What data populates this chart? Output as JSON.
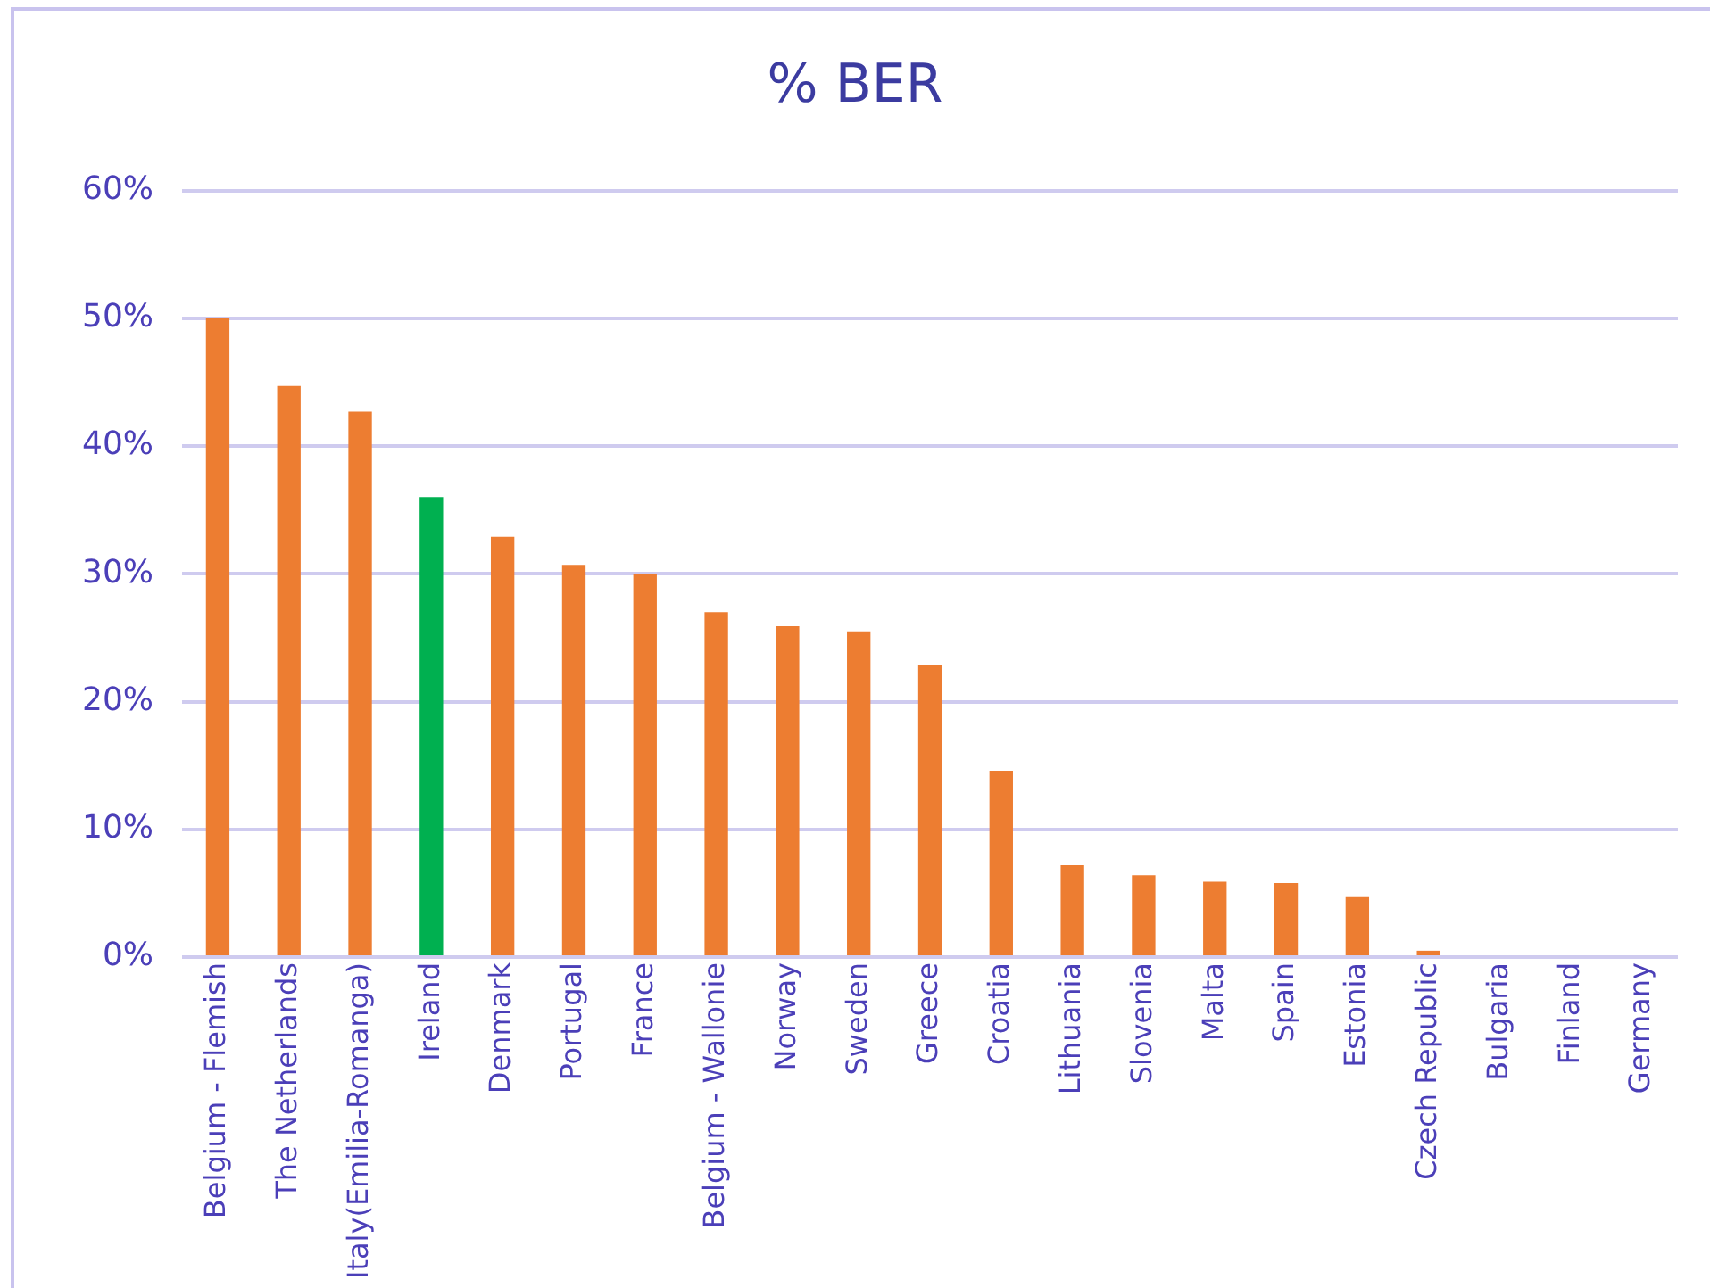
{
  "chart_data": {
    "type": "bar",
    "title": "% BER",
    "categories": [
      "Belgium - Flemish",
      "The Netherlands",
      "Italy(Emilia-Romanga)",
      "Ireland",
      "Denmark",
      "Portugal",
      "France",
      "Belgium - Wallonie",
      "Norway",
      "Sweden",
      "Greece",
      "Croatia",
      "Lithuania",
      "Slovenia",
      "Malta",
      "Spain",
      "Estonia",
      "Czech Republic",
      "Bulgaria",
      "Finland",
      "Germany"
    ],
    "values": [
      50.0,
      44.7,
      42.7,
      36.0,
      32.9,
      30.7,
      30.0,
      27.0,
      25.9,
      25.5,
      22.9,
      14.6,
      7.2,
      6.4,
      5.9,
      5.8,
      4.7,
      0.5,
      0,
      0,
      0
    ],
    "colors": [
      "#ed7d31",
      "#ed7d31",
      "#ed7d31",
      "#00b050",
      "#ed7d31",
      "#ed7d31",
      "#ed7d31",
      "#ed7d31",
      "#ed7d31",
      "#ed7d31",
      "#ed7d31",
      "#ed7d31",
      "#ed7d31",
      "#ed7d31",
      "#ed7d31",
      "#ed7d31",
      "#ed7d31",
      "#ed7d31",
      "#ed7d31",
      "#ed7d31",
      "#ed7d31"
    ],
    "ylim": [
      0,
      60
    ],
    "yticks": [
      {
        "value": 0,
        "label": "0%"
      },
      {
        "value": 10,
        "label": "10%"
      },
      {
        "value": 20,
        "label": "20%"
      },
      {
        "value": 30,
        "label": "30%"
      },
      {
        "value": 40,
        "label": "40%"
      },
      {
        "value": 50,
        "label": "50%"
      },
      {
        "value": 60,
        "label": "60%"
      }
    ],
    "grid": "y",
    "legend": false
  }
}
